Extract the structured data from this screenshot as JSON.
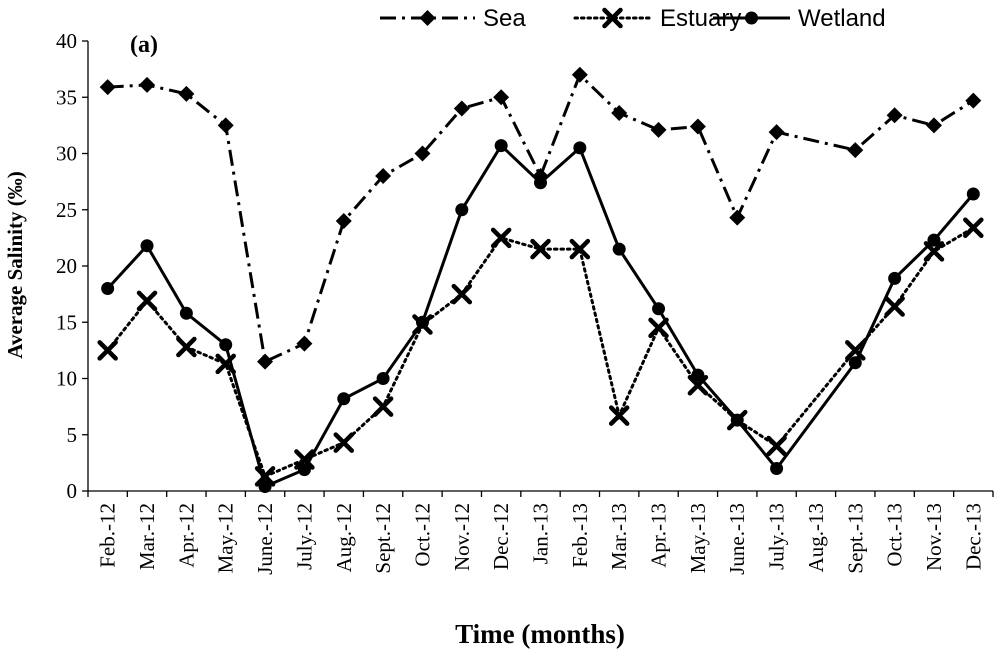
{
  "chart_data": {
    "type": "line",
    "panel_label": "(a)",
    "xlabel": "Time (months)",
    "ylabel": "Average Salinity (‰)",
    "ylim": [
      0,
      40
    ],
    "yticks": [
      "0",
      "5",
      "10",
      "15",
      "20",
      "25",
      "30",
      "35",
      "40"
    ],
    "grid": false,
    "legend_position": "top",
    "categories": [
      "Feb.-12",
      "Mar.-12",
      "Apr.-12",
      "May.-12",
      "June.-12",
      "July.-12",
      "Aug.-12",
      "Sept.-12",
      "Oct.-12",
      "Nov.-12",
      "Dec.-12",
      "Jan.-13",
      "Feb.-13",
      "Mar.-13",
      "Apr.-13",
      "May.-13",
      "June.-13",
      "July.-13",
      "Aug.-13",
      "Sept.-13",
      "Oct.-13",
      "Nov.-13",
      "Dec.-13"
    ],
    "series": [
      {
        "name": "Sea",
        "marker": "diamond",
        "line_style": "dash-dot",
        "color": "#000000",
        "values": [
          35.9,
          36.1,
          35.3,
          32.5,
          11.5,
          13.1,
          24.0,
          28.0,
          30.0,
          34.0,
          35.0,
          28.0,
          37.0,
          33.6,
          32.1,
          32.4,
          24.3,
          31.9,
          null,
          30.3,
          33.4,
          32.5,
          34.7
        ]
      },
      {
        "name": "Estuary",
        "marker": "x",
        "line_style": "dotted",
        "color": "#000000",
        "values": [
          12.5,
          16.9,
          12.8,
          11.3,
          1.3,
          2.8,
          4.3,
          7.5,
          14.8,
          17.5,
          22.5,
          21.5,
          21.5,
          6.7,
          14.5,
          9.4,
          6.3,
          4.0,
          null,
          12.5,
          16.4,
          21.3,
          23.4
        ]
      },
      {
        "name": "Wetland",
        "marker": "circle",
        "line_style": "solid",
        "color": "#000000",
        "values": [
          18.0,
          21.8,
          15.8,
          13.0,
          0.4,
          1.9,
          8.2,
          10.0,
          15.0,
          25.0,
          30.7,
          27.4,
          30.5,
          21.5,
          16.2,
          10.3,
          6.3,
          2.0,
          null,
          11.4,
          18.9,
          22.3,
          26.4
        ]
      }
    ]
  }
}
